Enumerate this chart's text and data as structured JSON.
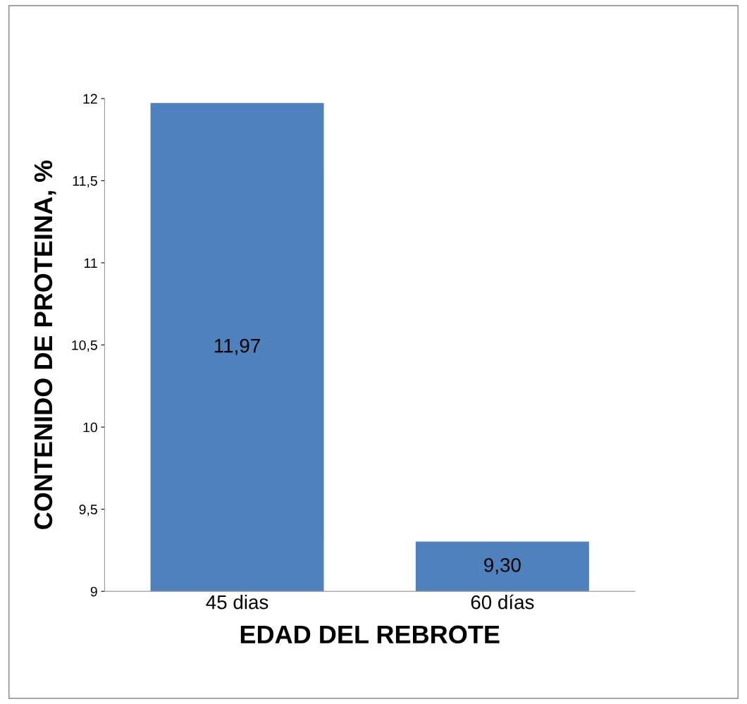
{
  "chart_data": {
    "type": "bar",
    "xlabel": "EDAD DEL REBROTE",
    "ylabel": "CONTENIDO DE PROTEINA, %",
    "categories": [
      "45 dias",
      "60 días"
    ],
    "values": [
      11.97,
      9.3
    ],
    "value_labels": [
      "11,97",
      "9,30"
    ],
    "color": "#4f81bd",
    "ylim": [
      9,
      12
    ],
    "yticks": [
      9,
      {
        "value": 9.5,
        "label": "9,5"
      },
      10,
      {
        "value": 10.5,
        "label": "10,5"
      },
      11,
      {
        "value": 11.5,
        "label": "11,5"
      },
      12
    ],
    "grid": false,
    "legend": false
  }
}
